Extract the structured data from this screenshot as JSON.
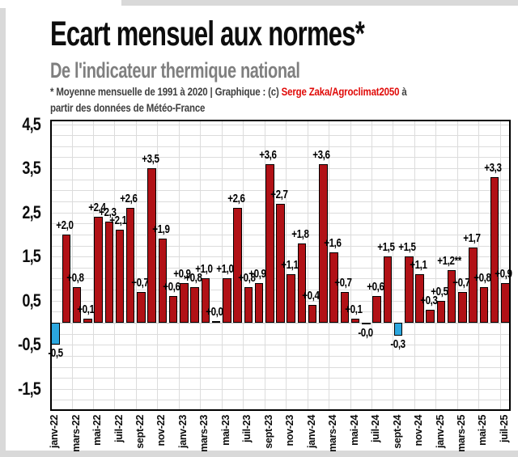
{
  "header": {
    "title": "Ecart mensuel aux normes*",
    "subtitle": "De l'indicateur thermique national",
    "footnote_prefix": "* Moyenne mensuelle de 1991 à 2020 | Graphique : (c) ",
    "footnote_credit": "Serge Zaka/Agroclimat2050",
    "footnote_suffix": " à partir des données de Météo-France"
  },
  "colors": {
    "bar_positive": "#b11116",
    "bar_negative": "#2ba7df",
    "bar_outline": "#000000",
    "grid": "#dcdcdc",
    "plot_border": "#000000",
    "credit_red": "#e00b09",
    "subtitle_gray": "#7f7f7f",
    "frame_gray": "#d9d9d9"
  },
  "chart_data": {
    "type": "bar",
    "title": "Ecart mensuel aux normes de l'indicateur thermique national",
    "xlabel": "",
    "ylabel": "",
    "ylim": [
      -2.0,
      4.6
    ],
    "grid": true,
    "legend": "none",
    "ytick_values": [
      4.5,
      3.5,
      2.5,
      1.5,
      0.5,
      -0.5,
      -1.5
    ],
    "ytick_labels": [
      "4,5",
      "3,5",
      "2,5",
      "1,5",
      "0,5",
      "-0,5",
      "-1,5"
    ],
    "points": [
      {
        "month": "janv-22",
        "value": -0.5,
        "label": "-0,5",
        "tick": true
      },
      {
        "month": "févr-22",
        "value": 2.0,
        "label": "+2,0",
        "tick": false
      },
      {
        "month": "mars-22",
        "value": 0.8,
        "label": "+0,8",
        "tick": true
      },
      {
        "month": "avr-22",
        "value": 0.1,
        "label": "+0,1",
        "tick": false
      },
      {
        "month": "mai-22",
        "value": 2.4,
        "label": "+2,4",
        "tick": true
      },
      {
        "month": "juin-22",
        "value": 2.3,
        "label": "+2,3",
        "tick": false
      },
      {
        "month": "juil-22",
        "value": 2.1,
        "label": "+2,1",
        "tick": true
      },
      {
        "month": "août-22",
        "value": 2.6,
        "label": "+2,6",
        "tick": false
      },
      {
        "month": "sept-22",
        "value": 0.7,
        "label": "+0,7",
        "tick": true
      },
      {
        "month": "oct-22",
        "value": 3.5,
        "label": "+3,5",
        "tick": false
      },
      {
        "month": "nov-22",
        "value": 1.9,
        "label": "+1,9",
        "tick": true
      },
      {
        "month": "déc-22",
        "value": 0.6,
        "label": "+0,6",
        "tick": false
      },
      {
        "month": "janv-23",
        "value": 0.9,
        "label": "+0,9",
        "tick": true
      },
      {
        "month": "févr-23",
        "value": 0.8,
        "label": "+0,8",
        "tick": false
      },
      {
        "month": "mars-23",
        "value": 1.0,
        "label": "+1,0",
        "tick": true
      },
      {
        "month": "avr-23",
        "value": 0.0,
        "label": "+0,0",
        "tick": false
      },
      {
        "month": "mai-23",
        "value": 1.0,
        "label": "+1,0",
        "tick": true
      },
      {
        "month": "juin-23",
        "value": 2.6,
        "label": "+2,6",
        "tick": false
      },
      {
        "month": "juil-23",
        "value": 0.8,
        "label": "+0,8",
        "tick": true
      },
      {
        "month": "août-23",
        "value": 0.9,
        "label": "+0,9",
        "tick": false
      },
      {
        "month": "sept-23",
        "value": 3.6,
        "label": "+3,6",
        "tick": true
      },
      {
        "month": "oct-23",
        "value": 2.7,
        "label": "+2,7",
        "tick": false
      },
      {
        "month": "nov-23",
        "value": 1.1,
        "label": "+1,1",
        "tick": true
      },
      {
        "month": "déc-23",
        "value": 1.8,
        "label": "+1,8",
        "tick": false
      },
      {
        "month": "janv-24",
        "value": 0.4,
        "label": "+0,4",
        "tick": true
      },
      {
        "month": "févr-24",
        "value": 3.6,
        "label": "+3,6",
        "tick": false
      },
      {
        "month": "mars-24",
        "value": 1.6,
        "label": "+1,6",
        "tick": true
      },
      {
        "month": "avr-24",
        "value": 0.7,
        "label": "+0,7",
        "tick": false
      },
      {
        "month": "mai-24",
        "value": 0.1,
        "label": "+0,1",
        "tick": true
      },
      {
        "month": "juin-24",
        "value": -0.0,
        "label": "-0,0",
        "tick": false
      },
      {
        "month": "juil-24",
        "value": 0.6,
        "label": "+0,6",
        "tick": true
      },
      {
        "month": "août-24",
        "value": 1.5,
        "label": "+1,5",
        "tick": false
      },
      {
        "month": "sept-24",
        "value": -0.3,
        "label": "-0,3",
        "tick": true
      },
      {
        "month": "oct-24",
        "value": 1.5,
        "label": "+1,5",
        "tick": false
      },
      {
        "month": "nov-24",
        "value": 1.1,
        "label": "+1,1",
        "tick": true
      },
      {
        "month": "déc-24",
        "value": 0.3,
        "label": "+0,3",
        "tick": false
      },
      {
        "month": "janv-25",
        "value": 0.5,
        "label": "+0,5",
        "tick": true
      },
      {
        "month": "févr-25",
        "value": 1.2,
        "label": "+1,2**",
        "tick": false
      },
      {
        "month": "mars-25",
        "value": 0.7,
        "label": "+0,7",
        "tick": true
      },
      {
        "month": "avr-25",
        "value": 1.7,
        "label": "+1,7",
        "tick": false
      },
      {
        "month": "mai-25",
        "value": 0.8,
        "label": "+0,8",
        "tick": true
      },
      {
        "month": "juin-25",
        "value": 3.3,
        "label": "+3,3",
        "tick": false
      },
      {
        "month": "juil-25",
        "value": 0.9,
        "label": "+0,9",
        "tick": true
      }
    ]
  }
}
